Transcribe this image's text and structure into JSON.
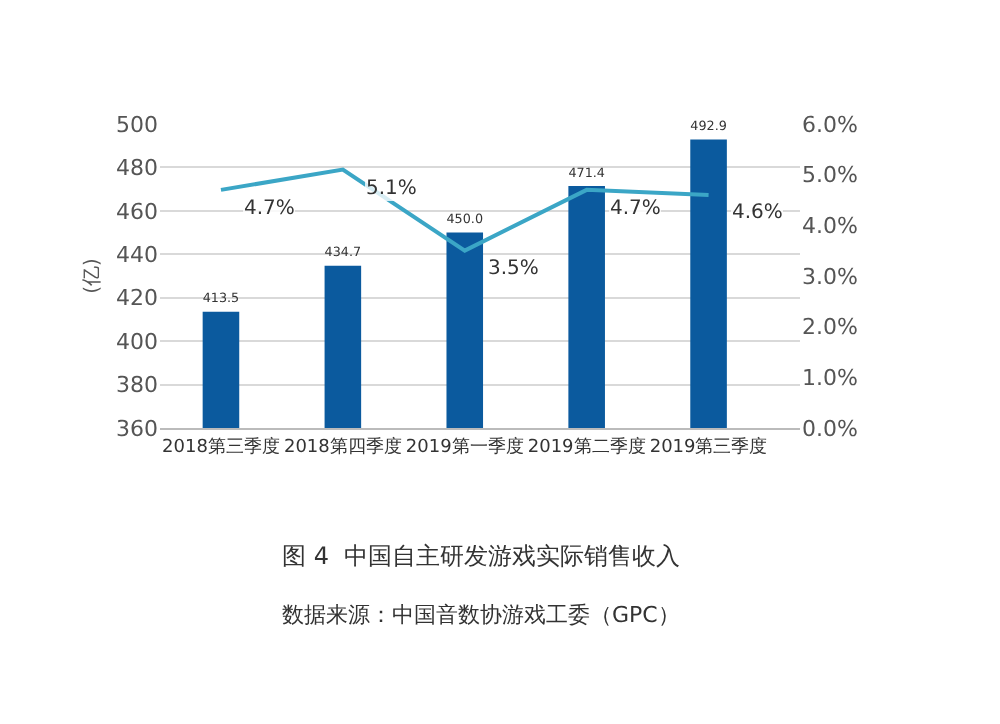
{
  "chart_data": {
    "type": "bar",
    "categories": [
      "2018第三季度",
      "2018第四季度",
      "2019第一季度",
      "2019第二季度",
      "2019第三季度"
    ],
    "series": [
      {
        "color": "#0b5a9e",
        "values": [
          413.5,
          434.7,
          450.0,
          471.4,
          492.9
        ],
        "value_labels": [
          "413.5",
          "434.7",
          "450.0",
          "471.4",
          "492.9"
        ]
      },
      {
        "type": "line",
        "axis": "y2",
        "color": "#3ba6c6",
        "values": [
          4.7,
          5.1,
          3.5,
          4.7,
          4.6
        ],
        "value_labels": [
          "4.7%",
          "5.1%",
          "3.5%",
          "4.7%",
          "4.6%"
        ]
      }
    ],
    "ylabel": "(亿)",
    "ylim": [
      360,
      500
    ],
    "yticks": [
      360,
      380,
      400,
      420,
      440,
      460,
      480,
      500
    ],
    "y2lim": [
      0,
      6
    ],
    "y2ticks": [
      {
        "value": 0,
        "label": "0.0%"
      },
      {
        "value": 1,
        "label": "1.0%"
      },
      {
        "value": 2,
        "label": "2.0%"
      },
      {
        "value": 3,
        "label": "3.0%"
      },
      {
        "value": 4,
        "label": "4.0%"
      },
      {
        "value": 5,
        "label": "5.0%"
      },
      {
        "value": 6,
        "label": "6.0%"
      }
    ],
    "grid": "y",
    "marker": "none",
    "line_style": "solid",
    "annotations": [
      "图 4  中国自主研发游戏实际销售收入",
      "数据来源：中国音数协游戏工委（GPC）"
    ]
  }
}
